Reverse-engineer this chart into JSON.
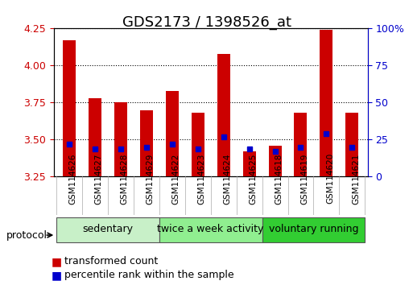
{
  "title": "GDS2173 / 1398526_at",
  "samples": [
    "GSM114626",
    "GSM114627",
    "GSM114628",
    "GSM114629",
    "GSM114622",
    "GSM114623",
    "GSM114624",
    "GSM114625",
    "GSM114618",
    "GSM114619",
    "GSM114620",
    "GSM114621"
  ],
  "transformed_count": [
    4.17,
    3.78,
    3.75,
    3.7,
    3.83,
    3.68,
    4.08,
    3.42,
    3.46,
    3.68,
    4.24,
    3.68
  ],
  "percentile_rank": [
    22,
    19,
    19,
    20,
    22,
    19,
    27,
    19,
    17,
    20,
    29,
    20
  ],
  "groups": [
    {
      "label": "sedentary",
      "indices": [
        0,
        1,
        2,
        3
      ],
      "color": "#c8f0c8"
    },
    {
      "label": "twice a week activity",
      "indices": [
        4,
        5,
        6,
        7
      ],
      "color": "#90ee90"
    },
    {
      "label": "voluntary running",
      "indices": [
        8,
        9,
        10,
        11
      ],
      "color": "#32cd32"
    }
  ],
  "group_colors": [
    "#c8f0c8",
    "#90ee90",
    "#32cd32"
  ],
  "ylim_left": [
    3.25,
    4.25
  ],
  "ylim_right": [
    0,
    100
  ],
  "yticks_left": [
    3.25,
    3.5,
    3.75,
    4.0,
    4.25
  ],
  "yticks_right": [
    0,
    25,
    50,
    75,
    100
  ],
  "bar_color": "#cc0000",
  "blue_color": "#0000cc",
  "base_value": 3.25,
  "bar_width": 0.5,
  "bg_color": "#ffffff",
  "plot_bg": "#ffffff",
  "title_fontsize": 13,
  "tick_fontsize": 9,
  "group_label_fontsize": 9,
  "legend_fontsize": 9,
  "left_tick_color": "#cc0000",
  "right_tick_color": "#0000cc",
  "grid_color": "#000000",
  "protocol_text": "protocol"
}
